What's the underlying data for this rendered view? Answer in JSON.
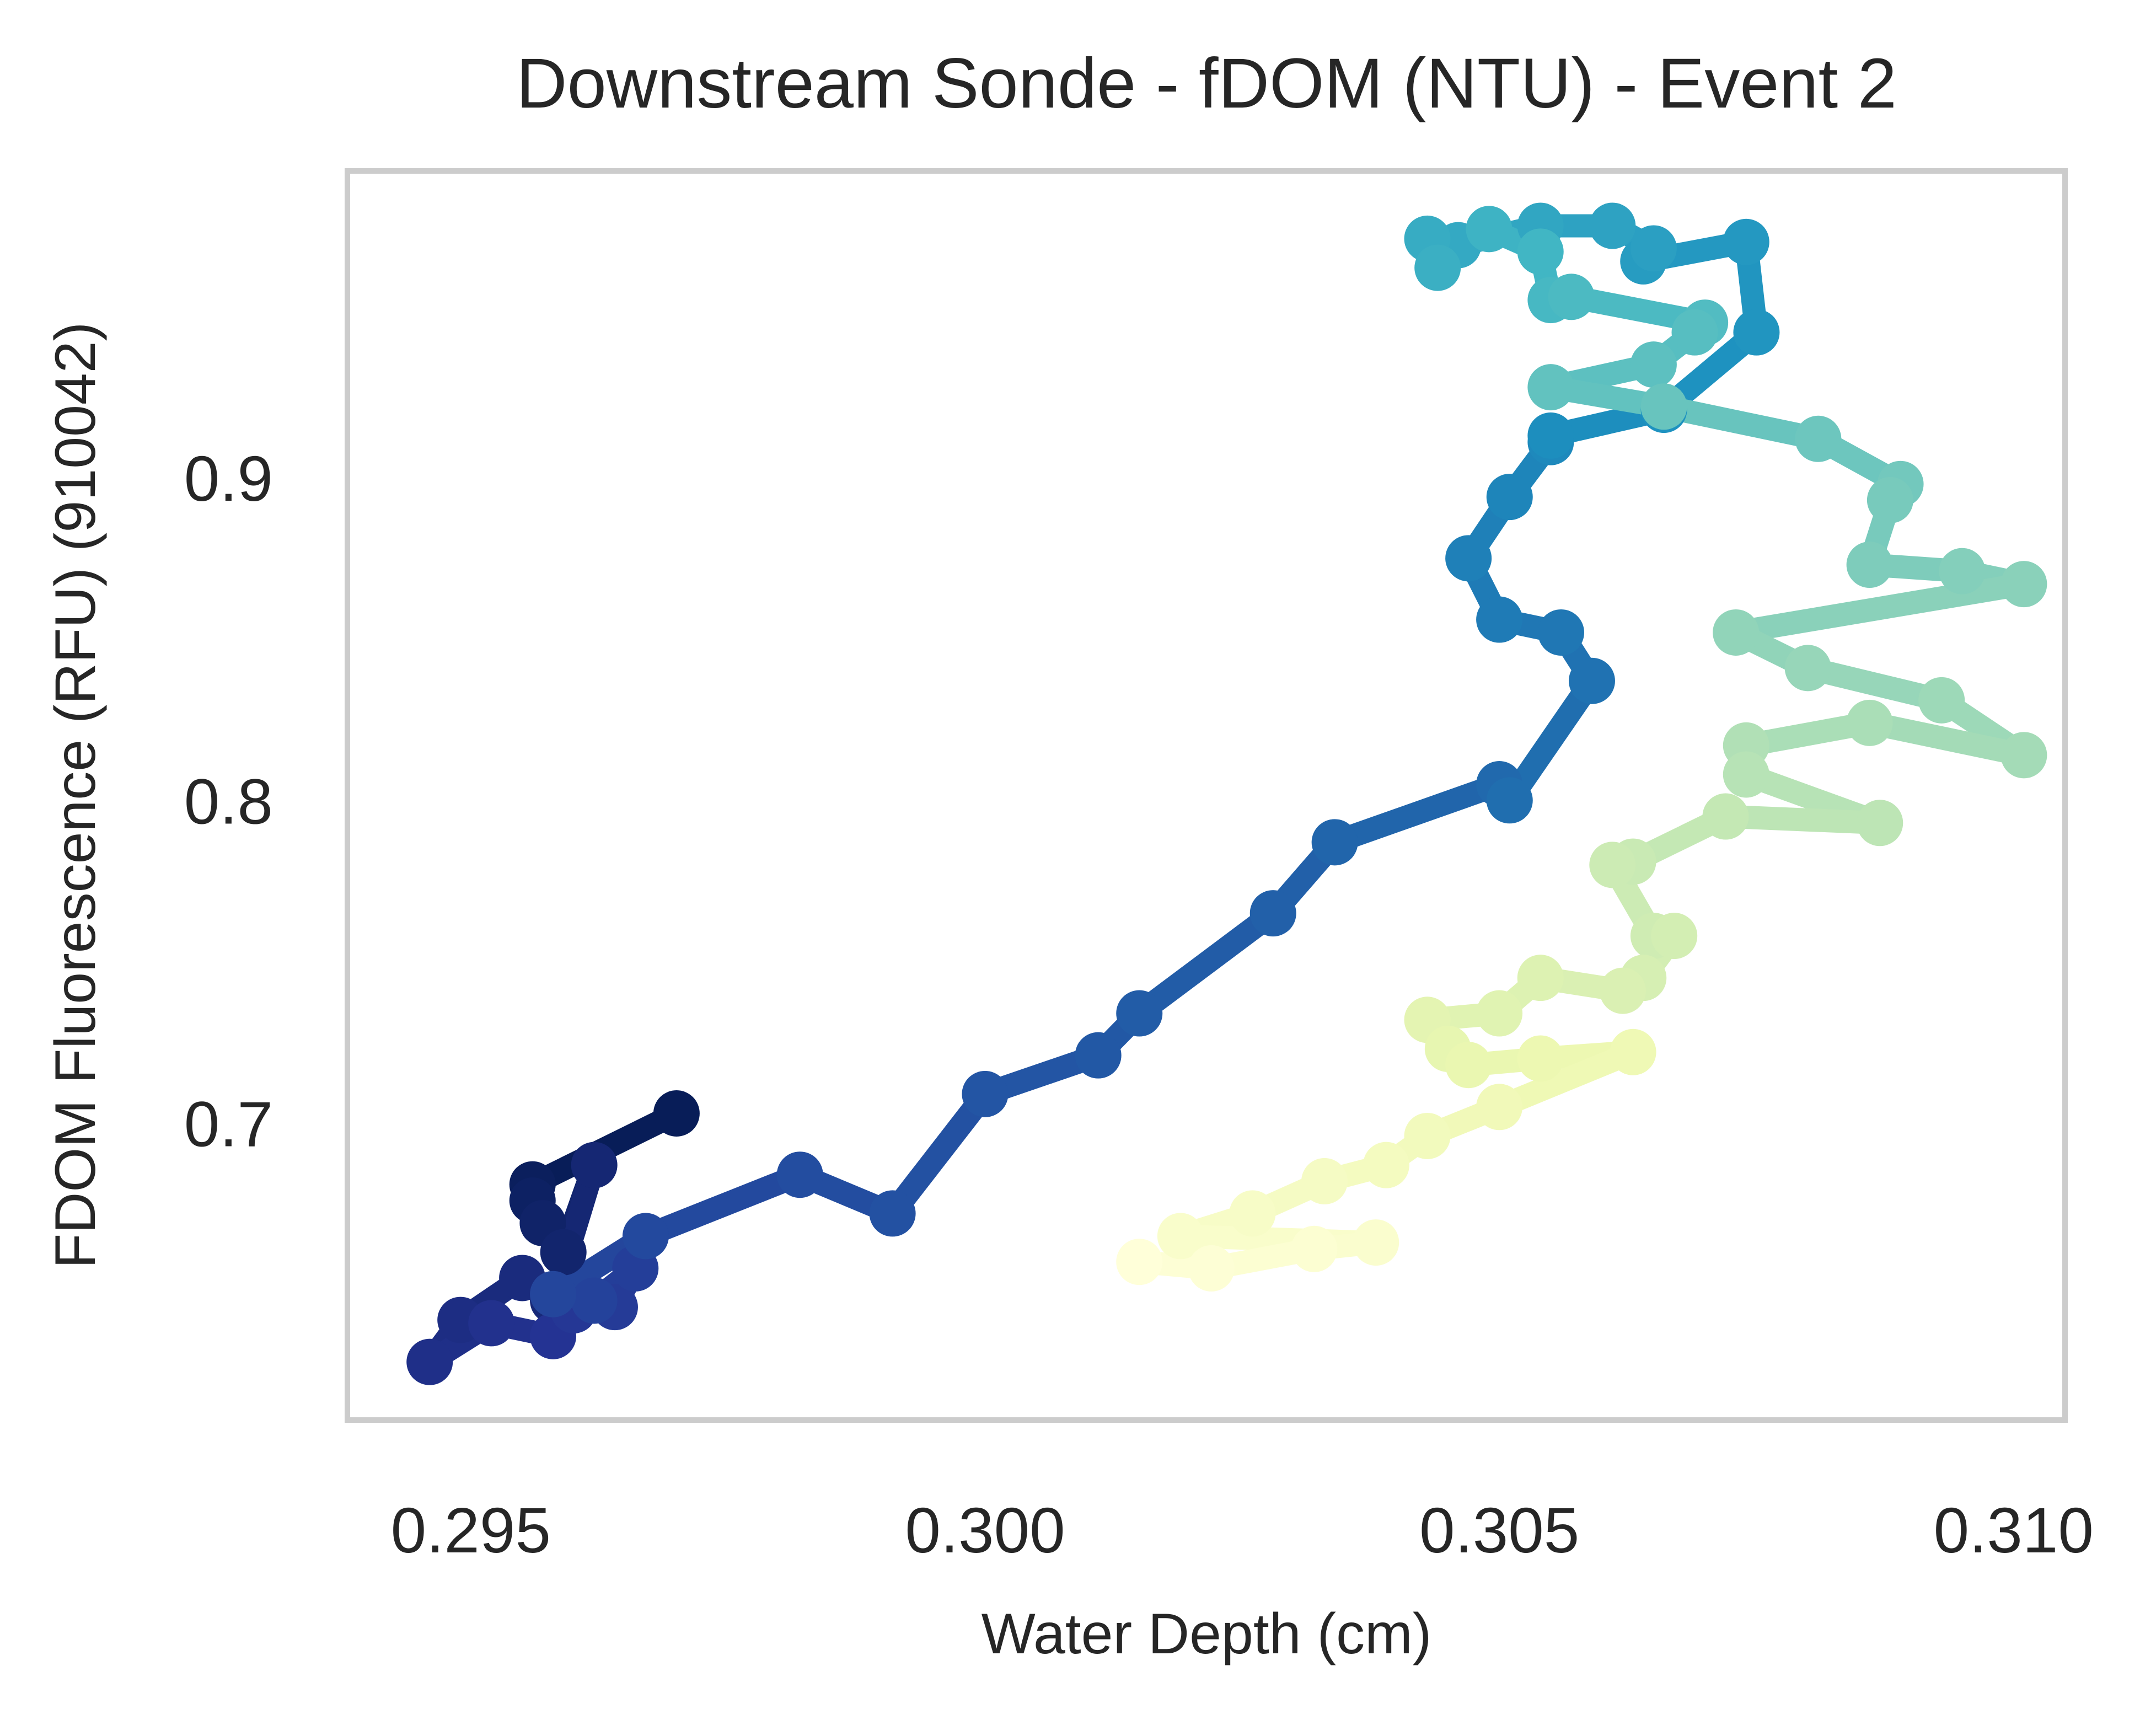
{
  "chart_data": {
    "type": "line",
    "title": "Downstream Sonde - fDOM (NTU) - Event 2",
    "xlabel": "Water Depth (cm)",
    "ylabel": "FDOM Fluorescence (RFU) (910042)",
    "xlim": [
      0.2938,
      0.3105
    ],
    "ylim": [
      0.608,
      0.995
    ],
    "x_ticks": [
      0.295,
      0.3,
      0.305,
      0.31
    ],
    "x_tick_labels": [
      "0.295",
      "0.300",
      "0.305",
      "0.310"
    ],
    "y_ticks": [
      0.7,
      0.8,
      0.9
    ],
    "y_tick_labels": [
      "0.7",
      "0.8",
      "0.9"
    ],
    "grid": false,
    "legend": "none",
    "colormap": "YlGnBu (dark navy at start, pale yellow at end)",
    "series": [
      {
        "x": [
          0.297,
          0.2956,
          0.2956,
          0.2957,
          0.2959,
          0.2962,
          0.2958,
          0.2955,
          0.2949,
          0.2946,
          0.2952,
          0.2958,
          0.296,
          0.2964,
          0.2966,
          0.2962,
          0.2958,
          0.2967,
          0.2982,
          0.2991,
          0.3,
          0.3011,
          0.3015,
          0.3028,
          0.3034,
          0.305,
          0.3051,
          0.3059,
          0.3056,
          0.305,
          0.3047,
          0.3051,
          0.3055,
          0.3055,
          0.3066,
          0.3075,
          0.3074,
          0.3064,
          0.3065,
          0.3061,
          0.3054,
          0.3046,
          0.3043,
          0.3044,
          0.3049,
          0.3054,
          0.3055,
          0.3057,
          0.307,
          0.3069,
          0.3065,
          0.3055,
          0.3066,
          0.3081,
          0.3089,
          0.3088,
          0.3086,
          0.3095,
          0.3101,
          0.3073,
          0.308,
          0.3093,
          0.3101,
          0.3086,
          0.3074,
          0.3074,
          0.3087,
          0.3072,
          0.3063,
          0.3061,
          0.3065,
          0.3067,
          0.3064,
          0.3062,
          0.3054,
          0.305,
          0.3043,
          0.3045,
          0.3047,
          0.3054,
          0.3063,
          0.305,
          0.3043,
          0.3039,
          0.3033,
          0.3026,
          0.3019,
          0.3038,
          0.3032,
          0.3022,
          0.3015
        ],
        "y": [
          0.703,
          0.681,
          0.676,
          0.669,
          0.66,
          0.687,
          0.645,
          0.652,
          0.639,
          0.626,
          0.638,
          0.634,
          0.642,
          0.643,
          0.655,
          0.645,
          0.647,
          0.665,
          0.684,
          0.672,
          0.709,
          0.721,
          0.734,
          0.765,
          0.787,
          0.805,
          0.8,
          0.837,
          0.852,
          0.856,
          0.875,
          0.894,
          0.911,
          0.913,
          0.921,
          0.945,
          0.973,
          0.967,
          0.971,
          0.978,
          0.978,
          0.972,
          0.974,
          0.965,
          0.977,
          0.97,
          0.955,
          0.956,
          0.948,
          0.945,
          0.935,
          0.928,
          0.922,
          0.912,
          0.898,
          0.893,
          0.873,
          0.871,
          0.867,
          0.852,
          0.841,
          0.831,
          0.814,
          0.824,
          0.817,
          0.808,
          0.793,
          0.795,
          0.781,
          0.78,
          0.758,
          0.758,
          0.745,
          0.741,
          0.745,
          0.734,
          0.732,
          0.723,
          0.718,
          0.72,
          0.722,
          0.705,
          0.696,
          0.687,
          0.682,
          0.672,
          0.665,
          0.663,
          0.661,
          0.655,
          0.657
        ]
      }
    ]
  }
}
